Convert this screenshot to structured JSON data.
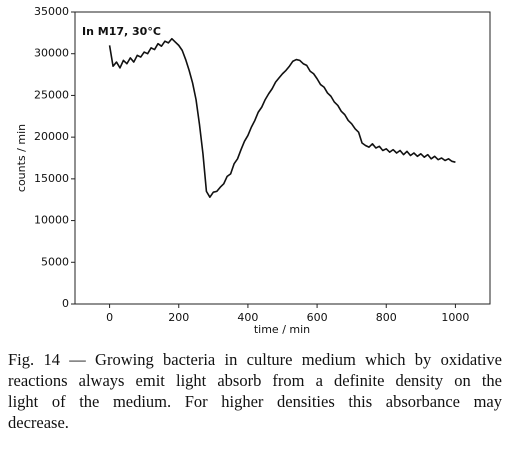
{
  "chart_data": {
    "type": "line",
    "annotation": "In M17, 30°C",
    "x_label": "time / min",
    "y_label": "counts / min",
    "xlim": [
      -100,
      1100
    ],
    "ylim": [
      0,
      35000
    ],
    "xticks": [
      0,
      200,
      400,
      600,
      800,
      1000
    ],
    "yticks": [
      0,
      5000,
      10000,
      15000,
      20000,
      25000,
      30000,
      35000
    ],
    "x": [
      0,
      10,
      20,
      30,
      40,
      50,
      60,
      70,
      80,
      90,
      100,
      110,
      120,
      130,
      140,
      150,
      160,
      170,
      180,
      190,
      200,
      210,
      220,
      230,
      240,
      250,
      260,
      270,
      280,
      290,
      300,
      310,
      320,
      330,
      340,
      350,
      360,
      370,
      380,
      390,
      400,
      410,
      420,
      430,
      440,
      450,
      460,
      470,
      480,
      490,
      500,
      510,
      520,
      530,
      540,
      550,
      560,
      570,
      580,
      590,
      600,
      610,
      620,
      630,
      640,
      650,
      660,
      670,
      680,
      690,
      700,
      710,
      720,
      730,
      740,
      750,
      760,
      770,
      780,
      790,
      800,
      810,
      820,
      830,
      840,
      850,
      860,
      870,
      880,
      890,
      900,
      910,
      920,
      930,
      940,
      950,
      960,
      970,
      980,
      990,
      1000
    ],
    "series": [
      {
        "color": "#111111",
        "values": [
          31000,
          28500,
          29000,
          28300,
          29200,
          28800,
          29500,
          29000,
          29800,
          29600,
          30200,
          30000,
          30700,
          30500,
          31200,
          30900,
          31500,
          31300,
          31800,
          31400,
          31000,
          30400,
          29300,
          28000,
          26500,
          24500,
          21500,
          18000,
          13500,
          12800,
          13400,
          13500,
          14000,
          14400,
          15300,
          15600,
          16800,
          17400,
          18500,
          19500,
          20200,
          21200,
          22000,
          23000,
          23600,
          24500,
          25200,
          25800,
          26600,
          27100,
          27600,
          28000,
          28500,
          29100,
          29300,
          29200,
          28800,
          28600,
          27900,
          27600,
          27000,
          26300,
          26000,
          25300,
          24900,
          24200,
          23800,
          23100,
          22700,
          22000,
          21600,
          21000,
          20600,
          19300,
          19000,
          18800,
          19200,
          18700,
          18900,
          18400,
          18600,
          18200,
          18500,
          18100,
          18400,
          17900,
          18300,
          17800,
          18100,
          17700,
          18000,
          17600,
          17900,
          17400,
          17700,
          17300,
          17500,
          17200,
          17400,
          17100,
          17000
        ]
      }
    ]
  },
  "caption_lines": [
    "Fig. 14 — Growing bacteria in culture medium which by oxidative",
    "reactions always emit light absorb from a definite density on the",
    "light of the medium. For higher densities this absorbance may",
    "decrease."
  ]
}
